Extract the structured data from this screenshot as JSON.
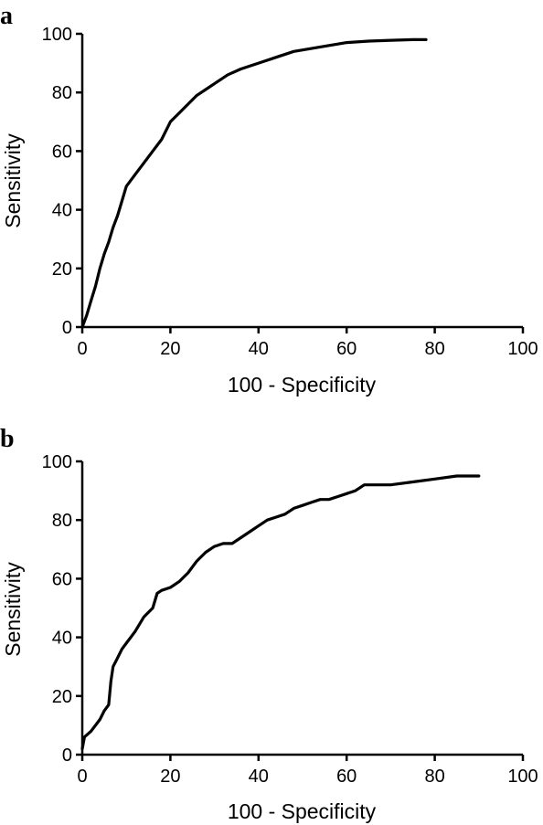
{
  "figure": {
    "panels": [
      "a",
      "b"
    ]
  },
  "chart_data": [
    {
      "type": "line",
      "panel_label": "a",
      "xlabel": "100 - Specificity",
      "ylabel": "Sensitivity",
      "xlim": [
        0,
        100
      ],
      "ylim": [
        0,
        100
      ],
      "xticks": [
        0,
        20,
        40,
        60,
        80,
        100
      ],
      "yticks": [
        0,
        20,
        40,
        60,
        80,
        100
      ],
      "grid": false,
      "series": [
        {
          "color": "#000000",
          "x": [
            0,
            1,
            2,
            3,
            4,
            5,
            6,
            7,
            8,
            9,
            10,
            12,
            14,
            16,
            18,
            20,
            22,
            24,
            26,
            28,
            30,
            33,
            36,
            40,
            44,
            48,
            52,
            56,
            60,
            65,
            70,
            75,
            78
          ],
          "y": [
            0,
            4,
            9,
            14,
            20,
            25,
            29,
            34,
            38,
            43,
            48,
            52,
            56,
            60,
            64,
            70,
            73,
            76,
            79,
            81,
            83,
            86,
            88,
            90,
            92,
            94,
            95,
            96,
            97,
            97.5,
            97.8,
            98,
            98
          ]
        }
      ]
    },
    {
      "type": "line",
      "panel_label": "b",
      "xlabel": "100 - Specificity",
      "ylabel": "Sensitivity",
      "xlim": [
        0,
        100
      ],
      "ylim": [
        0,
        100
      ],
      "xticks": [
        0,
        20,
        40,
        60,
        80,
        100
      ],
      "yticks": [
        0,
        20,
        40,
        60,
        80,
        100
      ],
      "grid": false,
      "series": [
        {
          "color": "#000000",
          "x": [
            0,
            0.5,
            2,
            3,
            4,
            5,
            6,
            6.5,
            7,
            8,
            9,
            10,
            12,
            14,
            16,
            17,
            18,
            20,
            22,
            24,
            26,
            28,
            30,
            32,
            34,
            36,
            38,
            40,
            42,
            44,
            46,
            48,
            50,
            52,
            54,
            56,
            58,
            60,
            62,
            64,
            70,
            75,
            80,
            85,
            90
          ],
          "y": [
            2,
            6,
            8,
            10,
            12,
            15,
            17,
            25,
            30,
            33,
            36,
            38,
            42,
            47,
            50,
            55,
            56,
            57,
            59,
            62,
            66,
            69,
            71,
            72,
            72,
            74,
            76,
            78,
            80,
            81,
            82,
            84,
            85,
            86,
            87,
            87,
            88,
            89,
            90,
            92,
            92,
            93,
            94,
            95,
            95
          ]
        }
      ]
    }
  ]
}
